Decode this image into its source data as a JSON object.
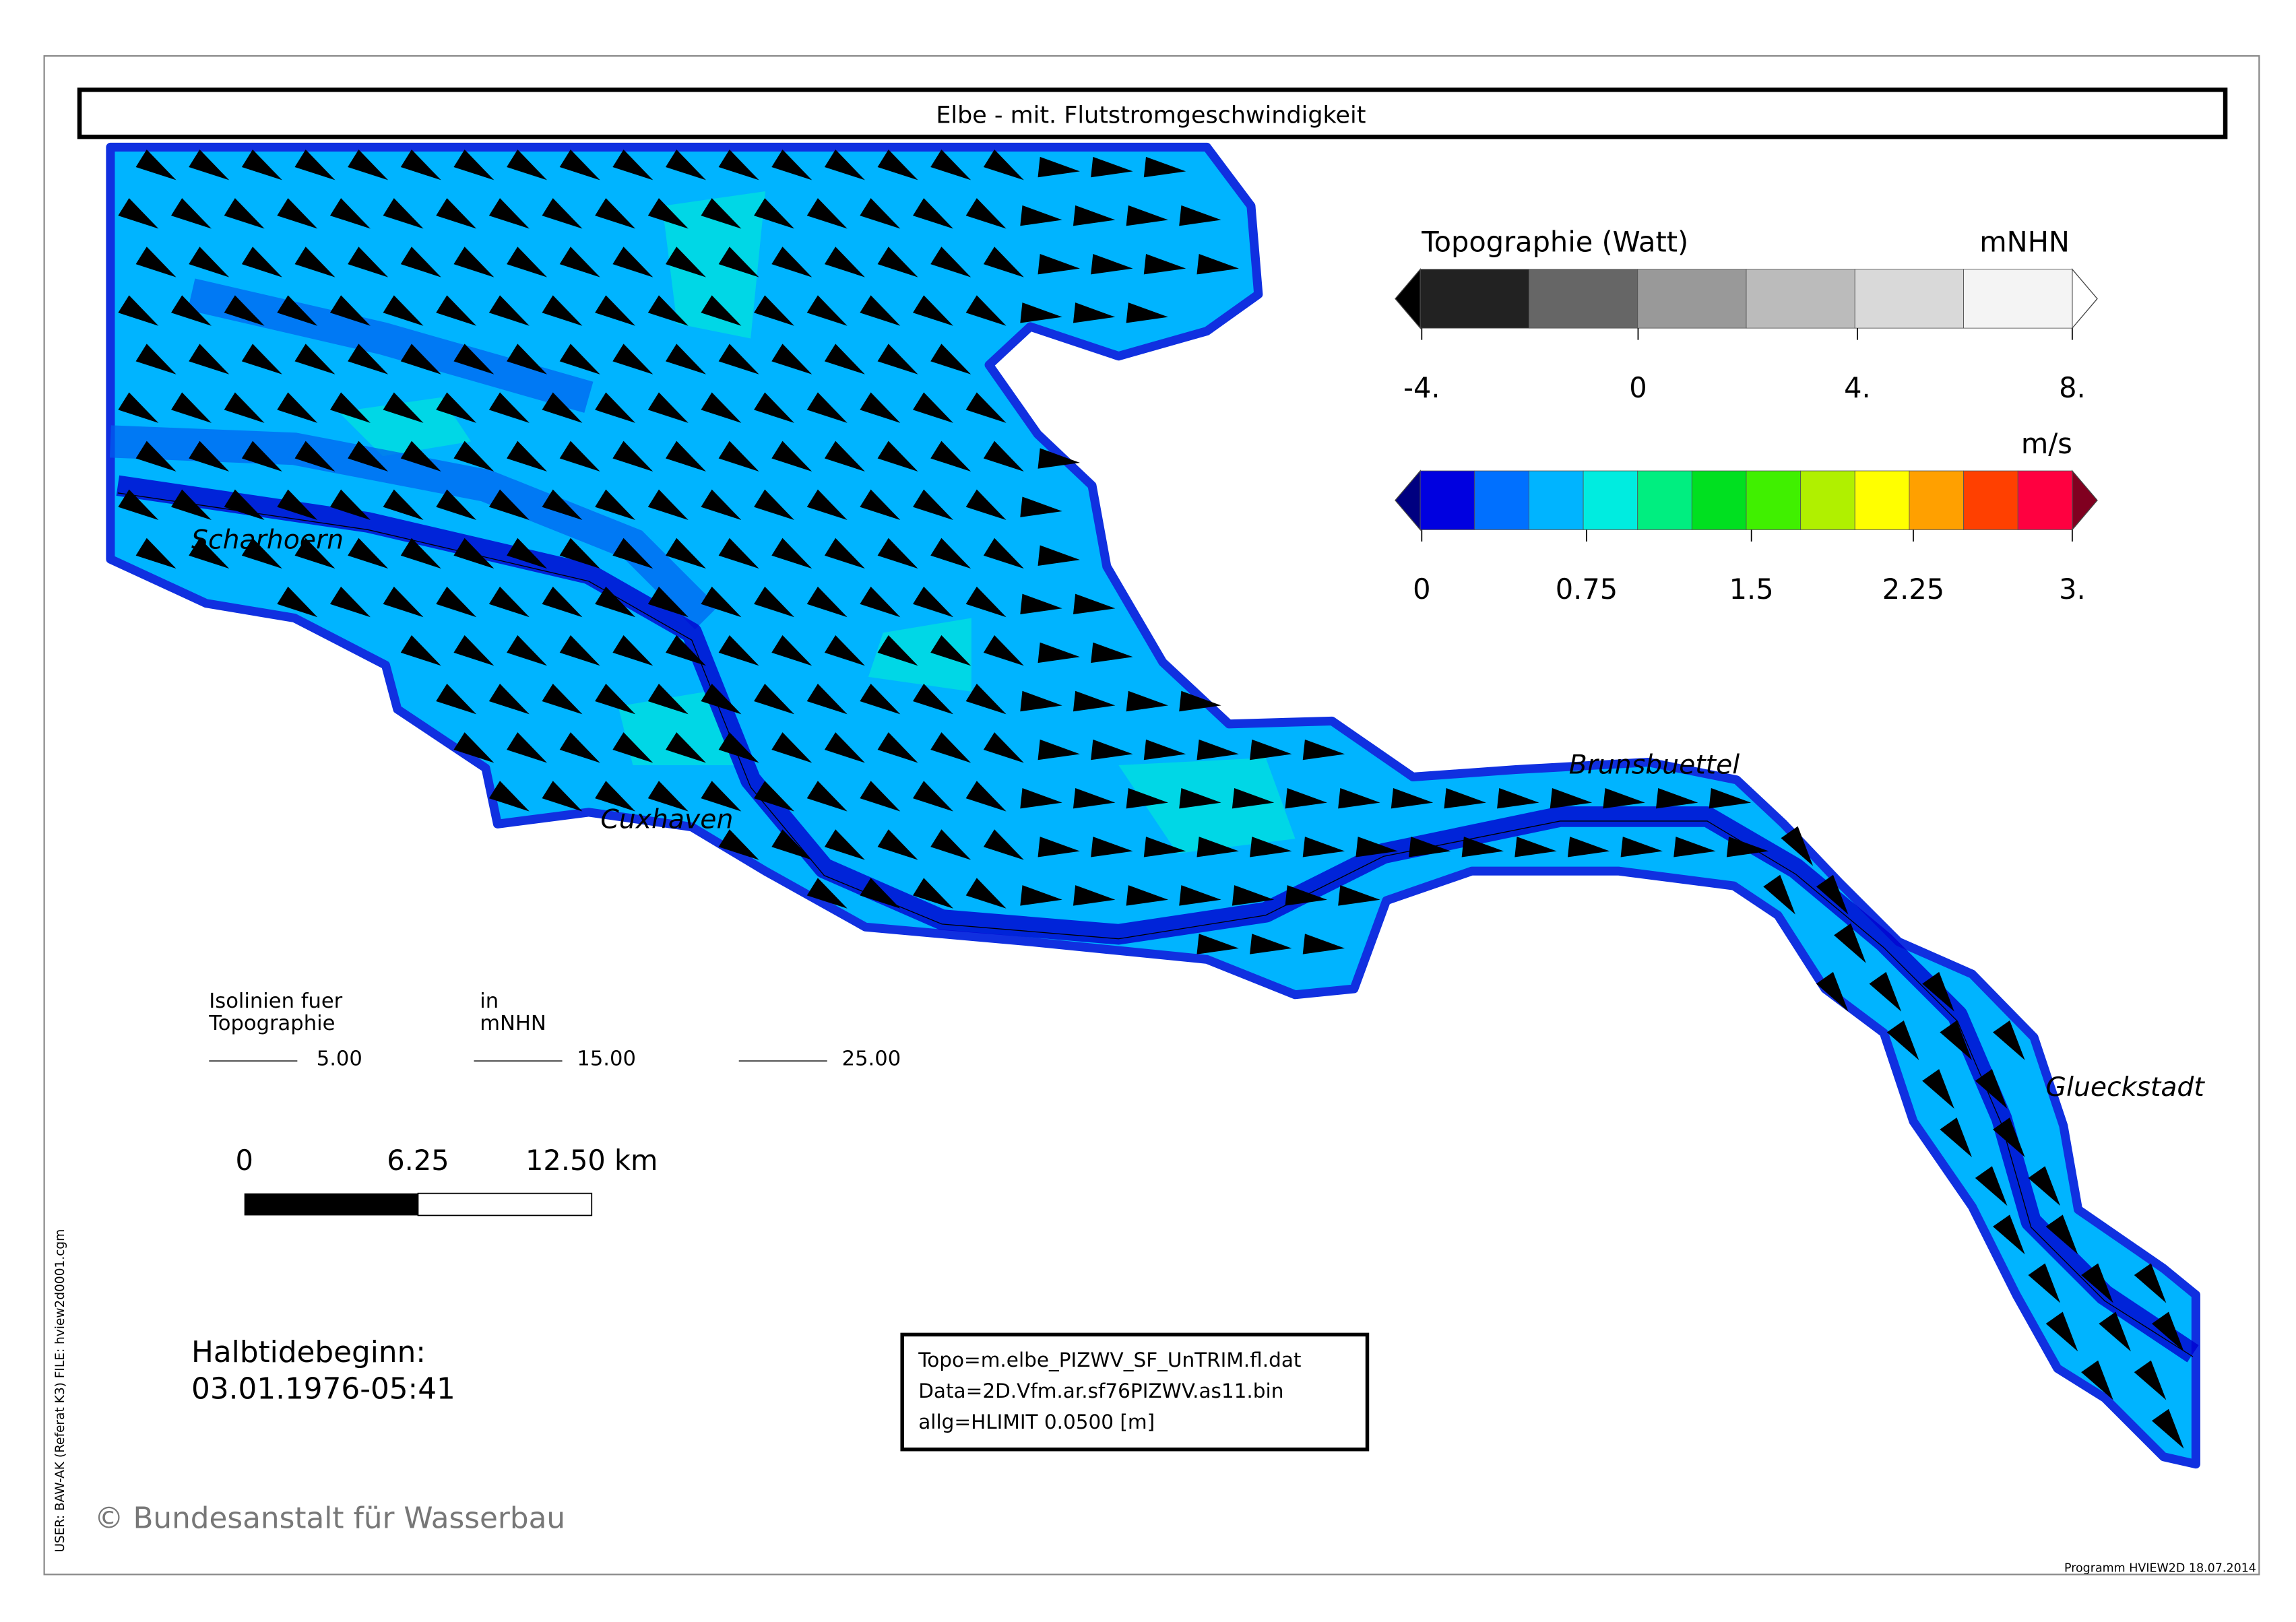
{
  "header": {
    "title": "Elbe - mit. Flutstromgeschwindigkeit"
  },
  "places": [
    "Scharhoern",
    "Cuxhaven",
    "Brunsbuettel",
    "Glueckstadt"
  ],
  "topo_legend": {
    "title": "Topographie (Watt)",
    "unit": "mNHN",
    "ticks": [
      "-4.",
      "0",
      "4.",
      "8."
    ],
    "colors": [
      "#222222",
      "#666666",
      "#999999",
      "#bbbbbb",
      "#d9d9d9",
      "#f4f4f4"
    ],
    "tips": [
      "#000000",
      "#ffffff"
    ]
  },
  "speed_legend": {
    "unit": "m/s",
    "ticks": [
      "0",
      "0.75",
      "1.5",
      "2.25",
      "3."
    ],
    "colors": [
      "#0000e0",
      "#0070ff",
      "#00b4ff",
      "#00ece0",
      "#00ee80",
      "#00e020",
      "#40f000",
      "#b0f000",
      "#ffff00",
      "#ffa000",
      "#ff4000",
      "#ff0040"
    ],
    "tips": [
      "#000080",
      "#800020"
    ]
  },
  "isolines": {
    "label_left": [
      "Isolinien fuer",
      "Topographie"
    ],
    "label_right": [
      "in",
      "mNHN"
    ],
    "levels": [
      "5.00",
      "15.00",
      "25.00"
    ]
  },
  "scale_bar": {
    "labels": [
      "0",
      "6.25",
      "12.50 km"
    ]
  },
  "time": {
    "label": "Halbtidebeginn:",
    "value": "03.01.1976-05:41"
  },
  "info_box": [
    "Topo=m.elbe_PIZWV_SF_UnTRIM.fl.dat",
    "Data=2D.Vfm.ar.sf76PIZWV.as11.bin",
    "allg=HLIMIT   0.0500 [m]"
  ],
  "side_text": "USER: BAW-AK (Referat K3)    FILE: hview2d0001.cgm",
  "copyright": "© Bundesanstalt für Wasserbau",
  "footer": "Programm HVIEW2D   18.07.2014"
}
